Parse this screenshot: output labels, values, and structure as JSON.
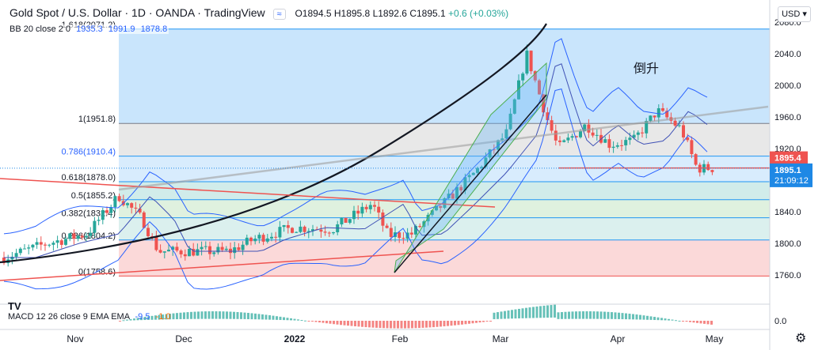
{
  "header": {
    "symbol": "Gold Spot / U.S. Dollar · 1D · OANDA · TradingView",
    "open": "O1894.5",
    "high": "H1895.8",
    "low": "L1892.6",
    "close": "C1895.1",
    "change": "+0.6 (+0.03%)",
    "indicator_label": "≈"
  },
  "bollinger": {
    "label": "BB 20 close 2 0",
    "basis": "1935.3",
    "upper": "1991.9",
    "lower": "1878.8"
  },
  "macd": {
    "label": "MACD 12 26 close 9 EMA EMA",
    "macd_value": "-9.5",
    "signal_value": "-1.0"
  },
  "currency": "USD",
  "logo": "TV",
  "annotation": "倒升",
  "colors": {
    "up": "#26a69a",
    "down": "#ef5350",
    "bb_line": "#2962ff",
    "price_tag": "#ef5350",
    "time_tag": "#1e88e5"
  },
  "chart_data": {
    "type": "candlestick",
    "ylim": [
      1740,
      2080
    ],
    "x_ticks": [
      "Nov",
      "Dec",
      "2022",
      "Feb",
      "Mar",
      "Apr",
      "May"
    ],
    "y_ticks": [
      1760.0,
      1800.0,
      1840.0,
      1880.0,
      1920.0,
      1960.0,
      2000.0,
      2040.0,
      2080.0
    ],
    "last_price": "1895.4",
    "current_price": "1895.1",
    "countdown": "21:09:12",
    "macd_axis_label": "0.0",
    "fib_levels": [
      {
        "label": "1.618(2071.2)",
        "value": 2071.2
      },
      {
        "label": "1(1951.8)",
        "value": 1951.8
      },
      {
        "label": "0.786(1910.4)",
        "value": 1910.4
      },
      {
        "label": "0.618(1878.0)",
        "value": 1878.0
      },
      {
        "label": "0.5(1855.2)",
        "value": 1855.2
      },
      {
        "label": "0.382(1832.4)",
        "value": 1832.4
      },
      {
        "label": "0.236(1804.2)",
        "value": 1804.2
      },
      {
        "label": "0(1758.6)",
        "value": 1758.6
      }
    ]
  }
}
